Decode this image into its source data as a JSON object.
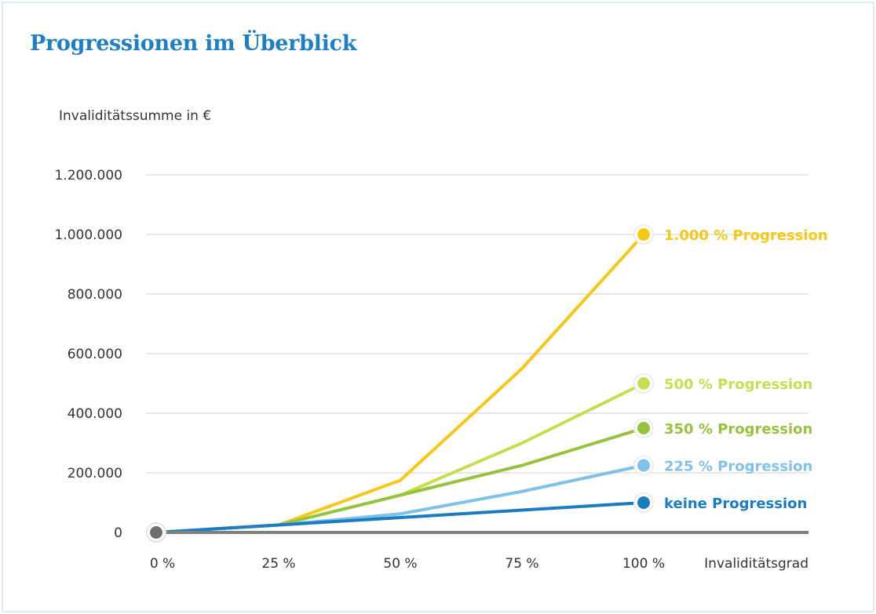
{
  "chart_data": {
    "type": "line",
    "title": "Progressionen im Überblick",
    "ylabel": "Invaliditätssumme in €",
    "xlabel": "Invaliditätsgrad",
    "x": [
      0,
      25,
      50,
      75,
      100
    ],
    "x_tick_labels": [
      "0 %",
      "25 %",
      "50 %",
      "75 %",
      "100 %"
    ],
    "ylim": [
      0,
      1200000
    ],
    "y_ticks": [
      0,
      200000,
      400000,
      600000,
      800000,
      1000000,
      1200000
    ],
    "y_tick_labels": [
      "0",
      "200.000",
      "400.000",
      "600.000",
      "800.000",
      "1.000.000",
      "1.200.000"
    ],
    "grid": true,
    "series": [
      {
        "name": "keine Progression",
        "color": "#1a7cc1",
        "values": [
          0,
          25000,
          50000,
          75000,
          100000
        ]
      },
      {
        "name": "225 % Progression",
        "color": "#7fc1e8",
        "values": [
          0,
          25000,
          62500,
          137500,
          225000
        ]
      },
      {
        "name": "350 % Progression",
        "color": "#95c33d",
        "values": [
          0,
          25000,
          125000,
          225000,
          350000
        ]
      },
      {
        "name": "500 % Progression",
        "color": "#c8dc50",
        "values": [
          0,
          25000,
          125000,
          300000,
          500000
        ]
      },
      {
        "name": "1.000 % Progression",
        "color": "#f5c818",
        "values": [
          0,
          25000,
          175000,
          550000,
          1000000
        ]
      }
    ]
  }
}
